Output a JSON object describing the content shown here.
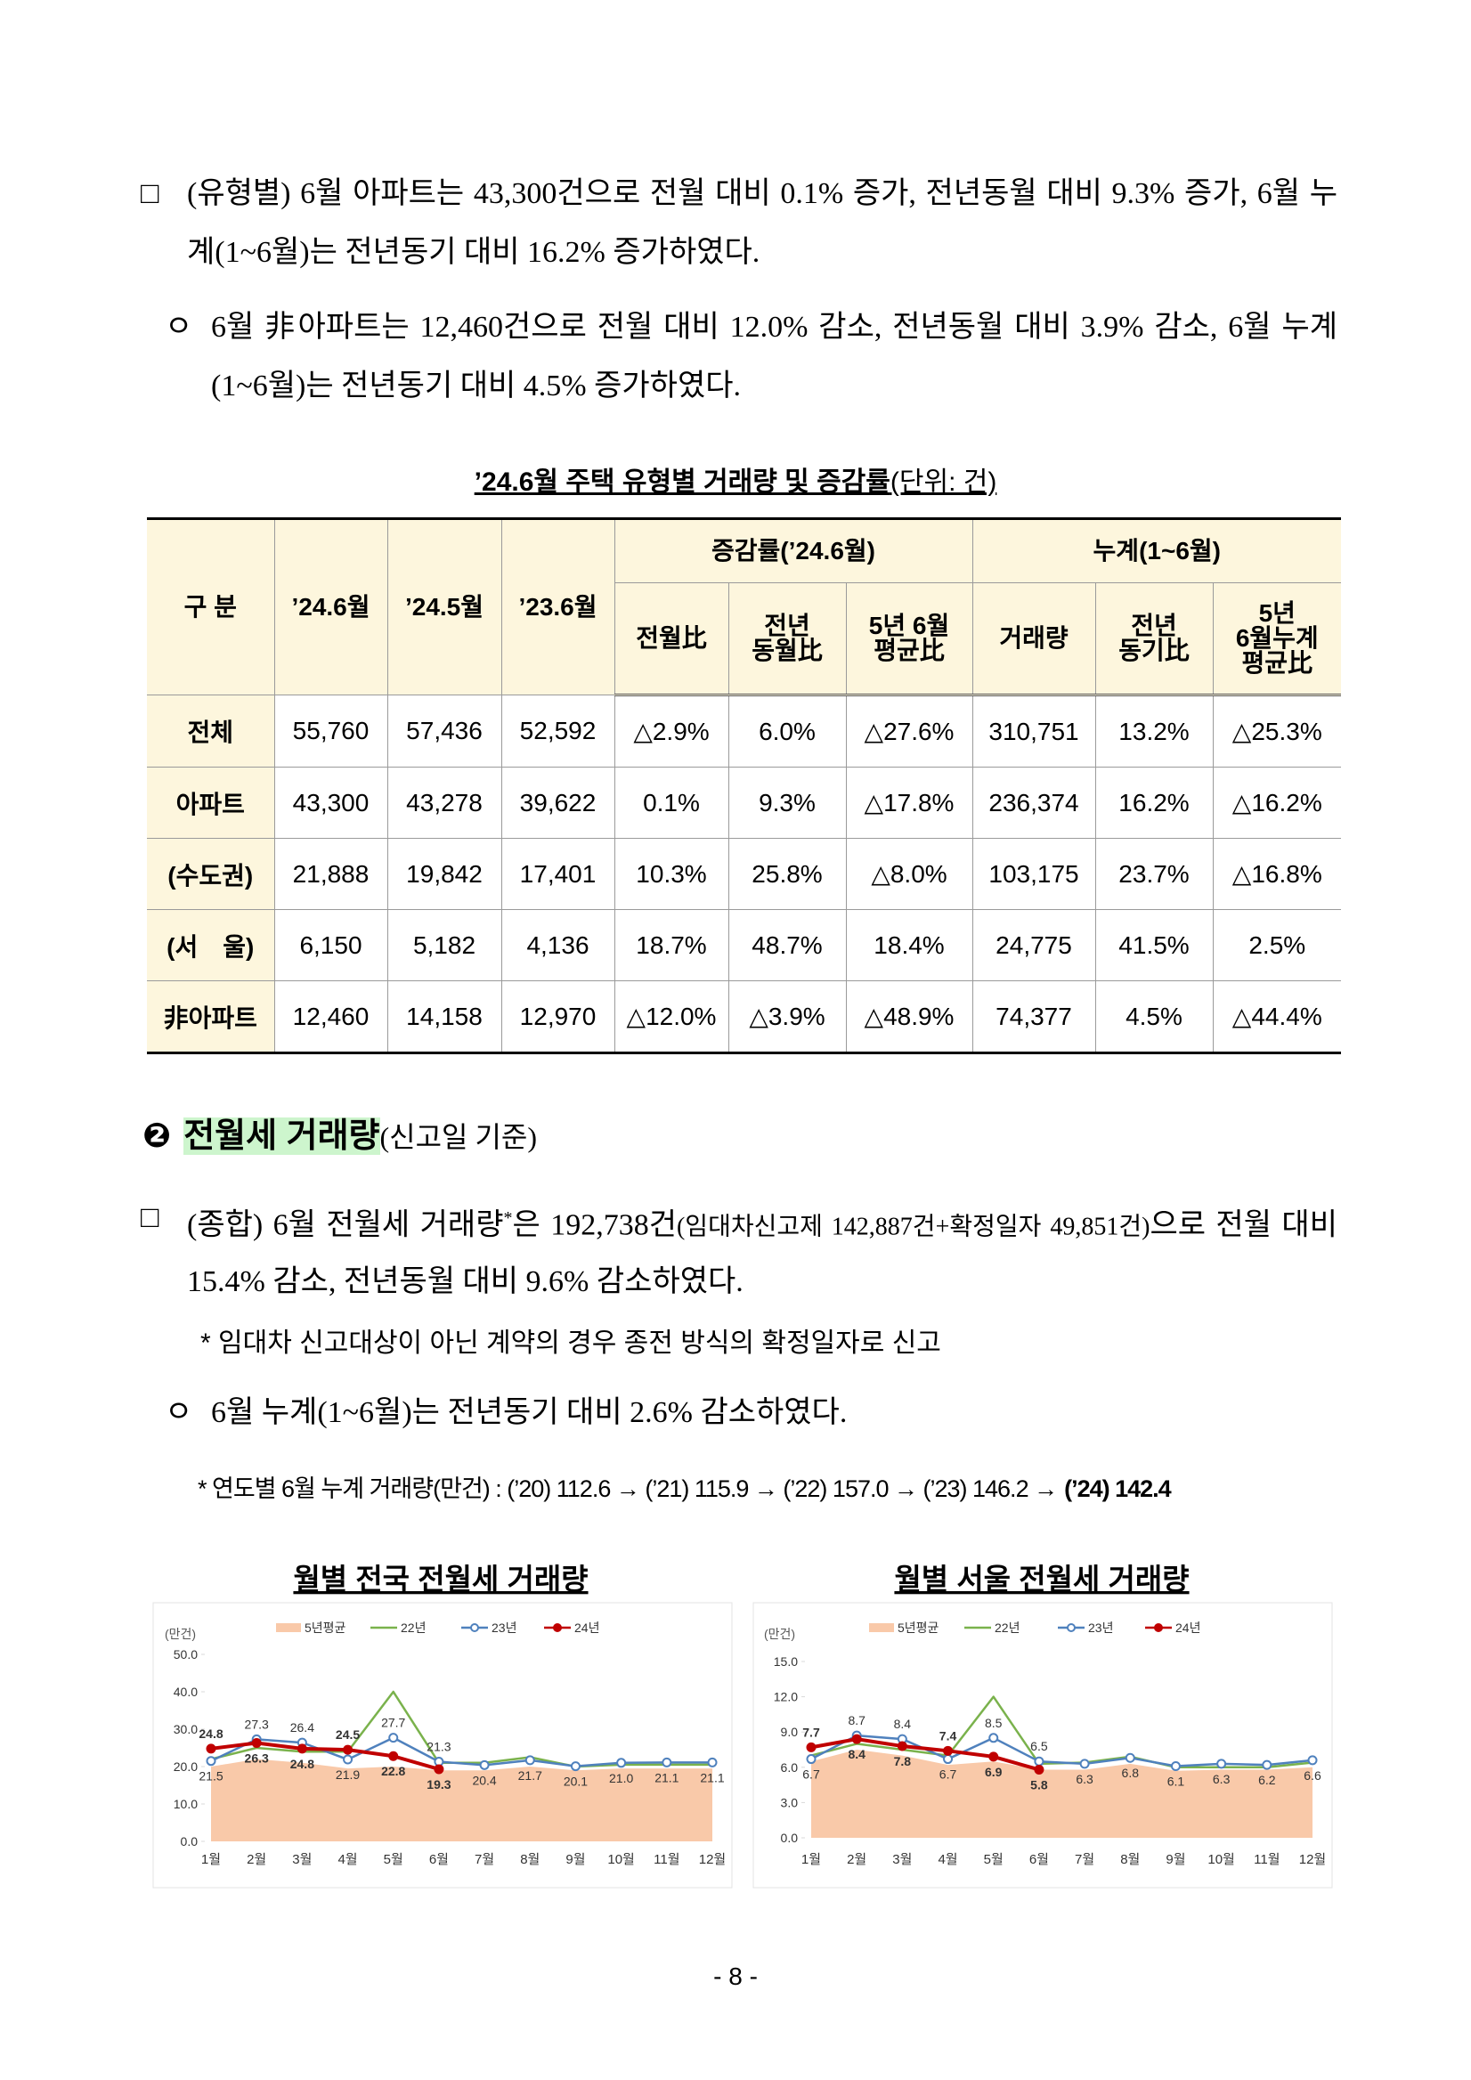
{
  "body": [
    {
      "bullet": "□",
      "text": "(유형별) 6월 아파트는 43,300건으로 전월 대비 0.1% 증가, 전년동월 대비 9.3% 증가, 6월 누계(1~6월)는 전년동기 대비 16.2% 증가하였다."
    },
    {
      "bullet": "ㅇ",
      "text": "6월 非아파트는 12,460건으로 전월 대비 12.0% 감소, 전년동월 대비 3.9% 감소, 6월 누계(1~6월)는 전년동기 대비 4.5% 증가하였다."
    }
  ],
  "table": {
    "title": "’24.6월 주택 유형별 거래량 및 증감률",
    "unit": "(단위: 건)",
    "header": {
      "label": "구 분",
      "periods": [
        "’24.6월",
        "’24.5월",
        "’23.6월"
      ],
      "groups": [
        {
          "name": "증감률(’24.6월)",
          "columns": [
            "전월比",
            "전년\n동월比",
            "5년 6월\n평균比"
          ]
        },
        {
          "name": "누계(1~6월)",
          "columns": [
            "거래량",
            "전년\n동기比",
            "5년\n6월누계\n평균比"
          ]
        }
      ]
    },
    "rows": [
      [
        "전체",
        "55,760",
        "57,436",
        "52,592",
        "△2.9%",
        "6.0%",
        "△27.6%",
        "310,751",
        "13.2%",
        "△25.3%"
      ],
      [
        "아파트",
        "43,300",
        "43,278",
        "39,622",
        "0.1%",
        "9.3%",
        "△17.8%",
        "236,374",
        "16.2%",
        "△16.2%"
      ],
      [
        "(수도권)",
        "21,888",
        "19,842",
        "17,401",
        "10.3%",
        "25.8%",
        "△8.0%",
        "103,175",
        "23.7%",
        "△16.8%"
      ],
      [
        "(서　울)",
        "6,150",
        "5,182",
        "4,136",
        "18.7%",
        "48.7%",
        "18.4%",
        "24,775",
        "41.5%",
        "2.5%"
      ],
      [
        "非아파트",
        "12,460",
        "14,158",
        "12,970",
        "△12.0%",
        "△3.9%",
        "△48.9%",
        "74,377",
        "4.5%",
        "△44.4%"
      ]
    ]
  },
  "section": {
    "marker": "❷",
    "title": "전월세 거래량",
    "subtitle": "(신고일 기준)"
  },
  "rent": {
    "bullet": "□",
    "parts": [
      "(종합) 6월 전월세 거래량",
      "*",
      "은 192,738건",
      "(임대차신고제 142,887건+확정일자 49,851건)",
      "으로 전월 대비 15.4% 감소, 전년동월 대비 9.6% 감소하였다."
    ],
    "note": "* 임대차 신고대상이 아닌 계약의 경우 종전 방식의 확정일자로 신고",
    "cumulative": {
      "bullet": "ㅇ",
      "text": "6월 누계(1~6월)는 전년동기 대비 2.6% 감소하였다."
    },
    "history": {
      "text": "* 연도별 6월 누계 거래량(만건) : (’20) 112.6 → (’21) 115.9 → (’22) 157.0 → (’23) 146.2 →",
      "highlight": "(’24) 142.4"
    }
  },
  "chart_data": [
    {
      "type": "line",
      "title": "월별 전국 전월세 거래량",
      "y_label": "(만건)",
      "categories": [
        "1월",
        "2월",
        "3월",
        "4월",
        "5월",
        "6월",
        "7월",
        "8월",
        "9월",
        "10월",
        "11월",
        "12월"
      ],
      "ylim": [
        0,
        50
      ],
      "yticks": [
        {
          "value": 0,
          "label": "0.0"
        },
        {
          "value": 10,
          "label": "10.0"
        },
        {
          "value": 20,
          "label": "20.0"
        },
        {
          "value": 30,
          "label": "30.0"
        },
        {
          "value": 40,
          "label": "40.0"
        },
        {
          "value": 50,
          "label": "50.0"
        }
      ],
      "series": [
        {
          "name": "5년평균",
          "type": "area",
          "color": "#f9c9a9",
          "values": [
            20,
            22,
            21,
            19.5,
            20,
            19,
            19,
            20,
            19,
            19.5,
            19.5,
            19.5
          ]
        },
        {
          "name": "22년",
          "type": "line",
          "color": "#7ab24c",
          "values": [
            22,
            25,
            24,
            24,
            40,
            21,
            21,
            22.5,
            20,
            20.5,
            20.5,
            20.5
          ]
        },
        {
          "name": "23년",
          "type": "line",
          "marker": "open-circle",
          "color": "#4f81bd",
          "values": [
            21.5,
            27.3,
            26.4,
            21.9,
            27.7,
            21.3,
            20.4,
            21.7,
            20.1,
            21.0,
            21.1,
            21.1
          ],
          "value_labels": [
            "21.5",
            "27.3",
            "26.4",
            "21.9",
            "27.7",
            "21.3",
            "20.4",
            "21.7",
            "20.1",
            "21.0",
            "21.1",
            "21.1"
          ]
        },
        {
          "name": "24년",
          "type": "line",
          "marker": "filled-circle",
          "color": "#c00000",
          "values": [
            24.8,
            26.3,
            24.8,
            24.5,
            22.8,
            19.3,
            null,
            null,
            null,
            null,
            null,
            null
          ],
          "value_labels": [
            "24.8",
            "26.3",
            "24.8",
            "24.5",
            "22.8",
            "19.3",
            null,
            null,
            null,
            null,
            null,
            null
          ]
        }
      ]
    },
    {
      "type": "line",
      "title": "월별 서울 전월세 거래량",
      "y_label": "(만건)",
      "categories": [
        "1월",
        "2월",
        "3월",
        "4월",
        "5월",
        "6월",
        "7월",
        "8월",
        "9월",
        "10월",
        "11월",
        "12월"
      ],
      "ylim": [
        0,
        15
      ],
      "yticks": [
        {
          "value": 0,
          "label": "0.0"
        },
        {
          "value": 3,
          "label": "3.0"
        },
        {
          "value": 6,
          "label": "6.0"
        },
        {
          "value": 9,
          "label": "9.0"
        },
        {
          "value": 12,
          "label": "12.0"
        },
        {
          "value": 15,
          "label": "15.0"
        }
      ],
      "series": [
        {
          "name": "5년평균",
          "type": "area",
          "color": "#f9c9a9",
          "values": [
            6.5,
            7.5,
            7,
            6.2,
            6.5,
            5.8,
            5.8,
            6.3,
            5.7,
            5.8,
            5.8,
            6
          ]
        },
        {
          "name": "22년",
          "type": "line",
          "color": "#7ab24c",
          "values": [
            7,
            8,
            7.5,
            7,
            12,
            6.3,
            6.4,
            6.9,
            6,
            6,
            6,
            6.4
          ]
        },
        {
          "name": "23년",
          "type": "line",
          "marker": "open-circle",
          "color": "#4f81bd",
          "values": [
            6.7,
            8.7,
            8.4,
            6.7,
            8.5,
            6.5,
            6.3,
            6.8,
            6.1,
            6.3,
            6.2,
            6.6
          ],
          "value_labels": [
            "6.7",
            "8.7",
            "8.4",
            "6.7",
            "8.5",
            "6.5",
            "6.3",
            "6.8",
            "6.1",
            "6.3",
            "6.2",
            "6.6"
          ]
        },
        {
          "name": "24년",
          "type": "line",
          "marker": "filled-circle",
          "color": "#c00000",
          "values": [
            7.7,
            8.4,
            7.8,
            7.4,
            6.9,
            5.8,
            null,
            null,
            null,
            null,
            null,
            null
          ],
          "value_labels": [
            "7.7",
            "8.4",
            "7.8",
            "7.4",
            "6.9",
            "5.8",
            null,
            null,
            null,
            null,
            null,
            null
          ]
        }
      ]
    }
  ],
  "page_number": "- 8 -"
}
